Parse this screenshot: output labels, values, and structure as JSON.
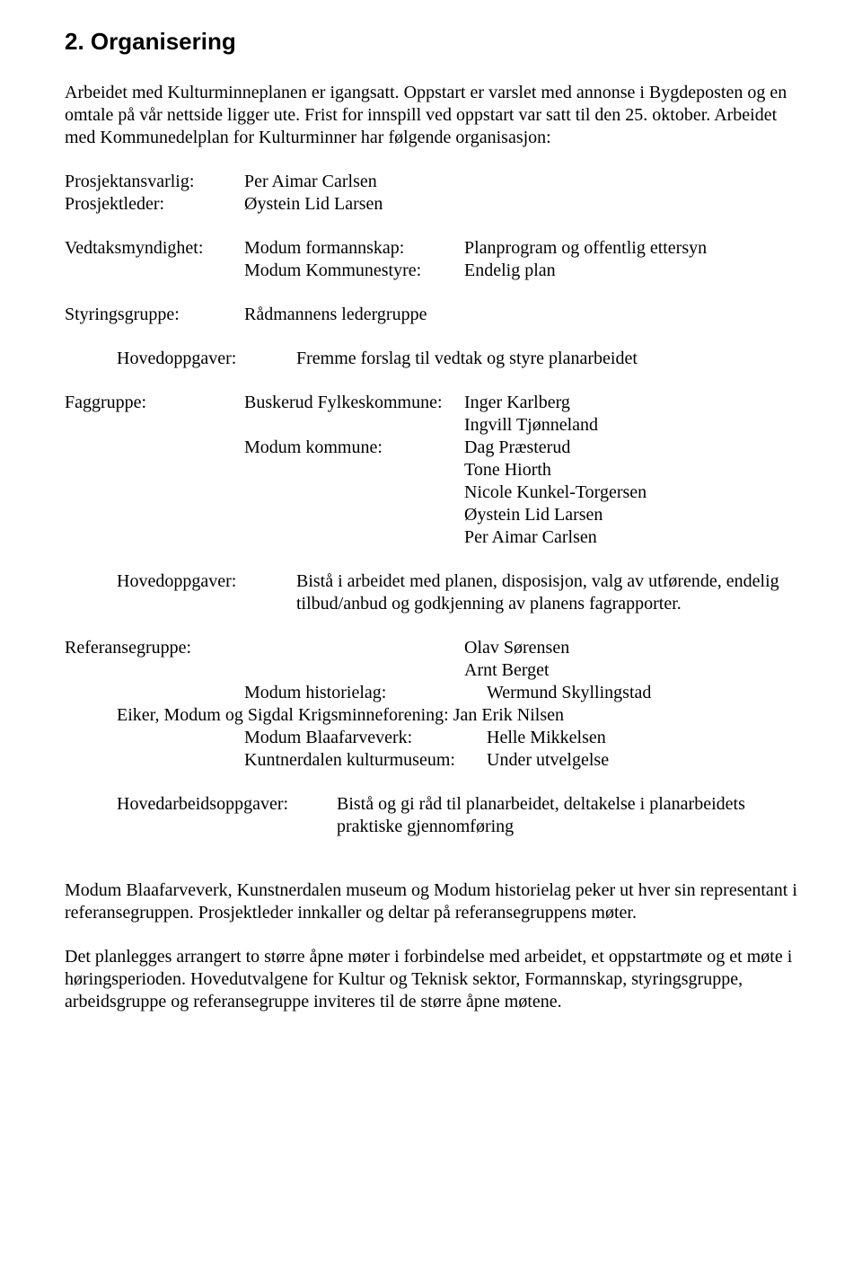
{
  "heading": "2. Organisering",
  "intro": "Arbeidet med Kulturminneplanen er igangsatt. Oppstart er varslet med annonse i Bygdeposten og en omtale på vår nettside ligger ute. Frist for innspill ved oppstart var satt til den 25. oktober. Arbeidet med Kommunedelplan for Kulturminner har følgende organisasjon:",
  "proj": {
    "ansvarlig_label": "Prosjektansvarlig:",
    "ansvarlig_value": "Per Aimar Carlsen",
    "leder_label": "Prosjektleder:",
    "leder_value": "Øystein Lid Larsen"
  },
  "vedtak": {
    "label": "Vedtaksmyndighet:",
    "r1a": "Modum formannskap:",
    "r1b": "Planprogram og offentlig ettersyn",
    "r2a": "Modum Kommunestyre:",
    "r2b": "Endelig plan"
  },
  "styr": {
    "label": "Styringsgruppe:",
    "value": "Rådmannens ledergruppe"
  },
  "hoved1": {
    "label": "Hovedoppgaver:",
    "value": "Fremme forslag til vedtak og styre planarbeidet"
  },
  "fag": {
    "label": "Faggruppe:",
    "r1a": "Buskerud Fylkeskommune:",
    "r1b": "Inger Karlberg",
    "r1c": "Ingvill Tjønneland",
    "r2a": "Modum kommune:",
    "r2b": "Dag Præsterud",
    "names": [
      "Tone Hiorth",
      "Nicole Kunkel-Torgersen",
      "Øystein Lid Larsen",
      "Per Aimar Carlsen"
    ]
  },
  "hoved2": {
    "label": "Hovedoppgaver:",
    "value": "Bistå i arbeidet med planen, disposisjon, valg av utførende, endelig tilbud/anbud og godkjenning av planens fagrapporter."
  },
  "ref": {
    "label": "Referansegruppe:",
    "n1": "Olav Sørensen",
    "n2": "Arnt Berget",
    "r1a": "Modum historielag:",
    "r1b": "Wermund Skyllingstad",
    "line2": "Eiker, Modum og Sigdal Krigsminneforening: Jan Erik Nilsen",
    "r3a": "Modum Blaafarveverk:",
    "r3b": "Helle Mikkelsen",
    "r4a": "Kuntnerdalen kulturmuseum:",
    "r4b": "Under utvelgelse"
  },
  "hoved3": {
    "label": "Hovedarbeidsoppgaver:",
    "value": "Bistå og gi råd til planarbeidet, deltakelse i planarbeidets praktiske gjennomføring"
  },
  "outro1": "Modum Blaafarveverk, Kunstnerdalen museum og Modum historielag peker ut hver sin representant i referansegruppen. Prosjektleder innkaller og deltar på referansegruppens møter.",
  "outro2": "Det planlegges arrangert to større åpne møter i forbindelse med arbeidet, et oppstartmøte og et møte i høringsperioden. Hovedutvalgene for Kultur og Teknisk sektor, Formannskap, styringsgruppe, arbeidsgruppe og referansegruppe inviteres til de større åpne møtene."
}
